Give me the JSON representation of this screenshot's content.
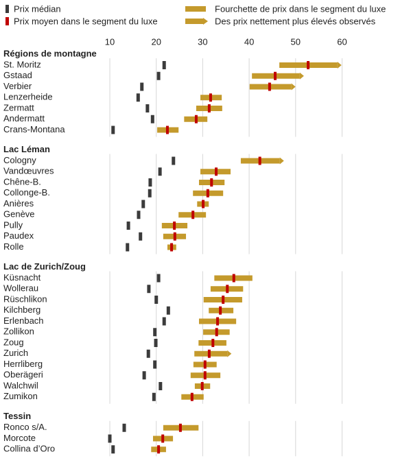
{
  "chart_data": {
    "type": "range",
    "legend": {
      "median": {
        "name": "Prix médian",
        "color": "#3b3b3b"
      },
      "mean": {
        "name": "Prix moyen dans le segment du luxe",
        "color": "#c00000"
      },
      "range": {
        "name": "Fourchette de prix dans le segment du luxe",
        "color": "#c49a2c"
      },
      "higher": {
        "name": "Des prix nettement plus élevés observés",
        "color": "#c49a2c"
      }
    },
    "xlim": [
      8,
      62
    ],
    "xticks": [
      10,
      20,
      30,
      40,
      50,
      60
    ],
    "grid": true,
    "groups": [
      {
        "title": "Régions de montagne",
        "categories": [
          "St. Moritz",
          "Gstaad",
          "Verbier",
          "Lenzerheide",
          "Zermatt",
          "Andermatt",
          "Crans-Montana"
        ],
        "median": [
          21.7,
          20.5,
          16.9,
          16.1,
          18.1,
          19.2,
          10.7
        ],
        "low": [
          46.5,
          40.6,
          40.1,
          29.5,
          28.6,
          26.0,
          20.2
        ],
        "high": [
          59.0,
          50.9,
          49.1,
          34.1,
          34.2,
          31.0,
          24.8
        ],
        "mean": [
          52.7,
          45.6,
          44.4,
          31.7,
          31.4,
          28.6,
          22.4
        ],
        "higher": [
          true,
          true,
          true,
          false,
          false,
          false,
          false
        ]
      },
      {
        "title": "Lac Léman",
        "categories": [
          "Cologny",
          "Vandœuvres",
          "Chêne-B.",
          "Collonge-B.",
          "Anières",
          "Genève",
          "Pully",
          "Paudex",
          "Rolle"
        ],
        "median": [
          23.7,
          20.8,
          18.7,
          18.6,
          17.2,
          16.2,
          14.0,
          16.6,
          13.8
        ],
        "low": [
          38.2,
          29.5,
          29.2,
          27.9,
          28.8,
          24.8,
          21.2,
          21.5,
          22.4
        ],
        "high": [
          46.6,
          36.0,
          34.7,
          34.4,
          31.3,
          30.7,
          26.7,
          26.4,
          24.3
        ],
        "mean": [
          42.3,
          32.9,
          31.9,
          31.1,
          30.1,
          27.9,
          23.9,
          24.0,
          23.3
        ],
        "higher": [
          true,
          false,
          false,
          false,
          false,
          false,
          false,
          false,
          false
        ]
      },
      {
        "title": "Lac de Zurich/Zoug",
        "categories": [
          "Küsnacht",
          "Wollerau",
          "Rüschlikon",
          "Kilchberg",
          "Erlenbach",
          "Zollikon",
          "Zoug",
          "Zurich",
          "Herrliberg",
          "Oberägeri",
          "Walchwil",
          "Zumikon"
        ],
        "median": [
          20.5,
          18.4,
          20.0,
          22.6,
          21.7,
          19.7,
          19.9,
          18.3,
          19.7,
          17.4,
          20.9,
          19.5
        ],
        "low": [
          32.5,
          31.7,
          30.2,
          31.3,
          29.2,
          30.1,
          29.1,
          28.2,
          28.0,
          27.4,
          28.3,
          25.4
        ],
        "high": [
          40.7,
          38.7,
          38.5,
          36.6,
          37.2,
          35.8,
          35.1,
          35.3,
          33.0,
          33.8,
          31.6,
          30.2
        ],
        "mean": [
          36.7,
          35.3,
          34.4,
          33.8,
          33.2,
          33.0,
          32.2,
          31.4,
          30.5,
          30.5,
          29.9,
          27.7
        ],
        "higher": [
          false,
          false,
          false,
          false,
          false,
          false,
          false,
          true,
          false,
          false,
          false,
          false
        ]
      },
      {
        "title": "Tessin",
        "categories": [
          "Ronco s/A.",
          "Morcote",
          "Collina d’Oro"
        ],
        "median": [
          13.1,
          10.0,
          10.7
        ],
        "low": [
          21.5,
          19.3,
          18.9
        ],
        "high": [
          29.1,
          23.6,
          22.1
        ],
        "mean": [
          25.2,
          21.4,
          20.5
        ],
        "higher": [
          false,
          false,
          false
        ]
      }
    ]
  }
}
